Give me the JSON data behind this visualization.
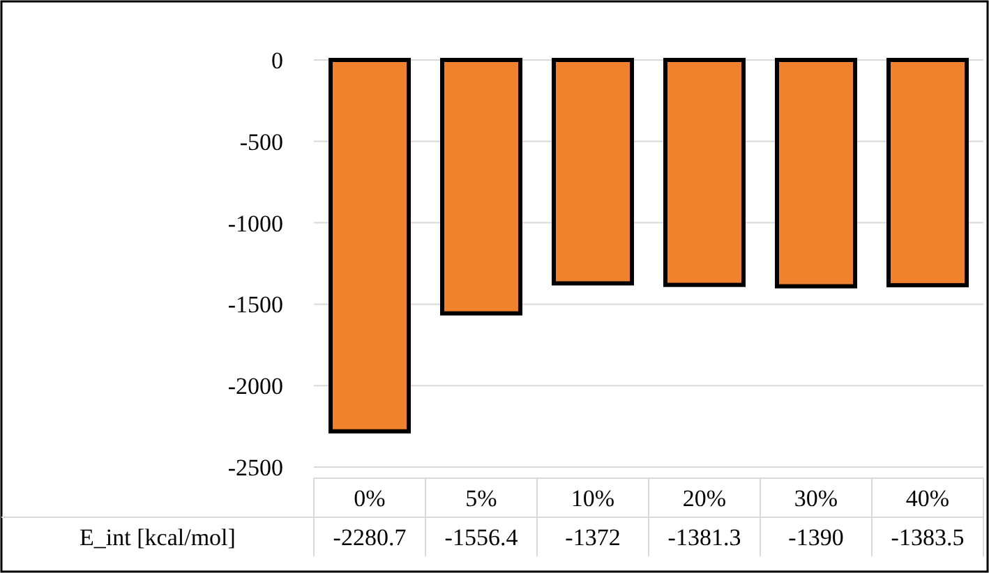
{
  "chart_data": {
    "type": "bar",
    "categories": [
      "0%",
      "5%",
      "10%",
      "20%",
      "30%",
      "40%"
    ],
    "series": [
      {
        "name": "E_int [kcal/mol]",
        "color": "#f0822e",
        "values": [
          -2280.7,
          -1556.4,
          -1372,
          -1381.3,
          -1390,
          -1383.5
        ]
      }
    ],
    "ylim": [
      -2500,
      0
    ],
    "yticks": [
      -2500,
      -2000,
      -1500,
      -1000,
      -500,
      0
    ],
    "grid": "y",
    "data_labels": true
  }
}
